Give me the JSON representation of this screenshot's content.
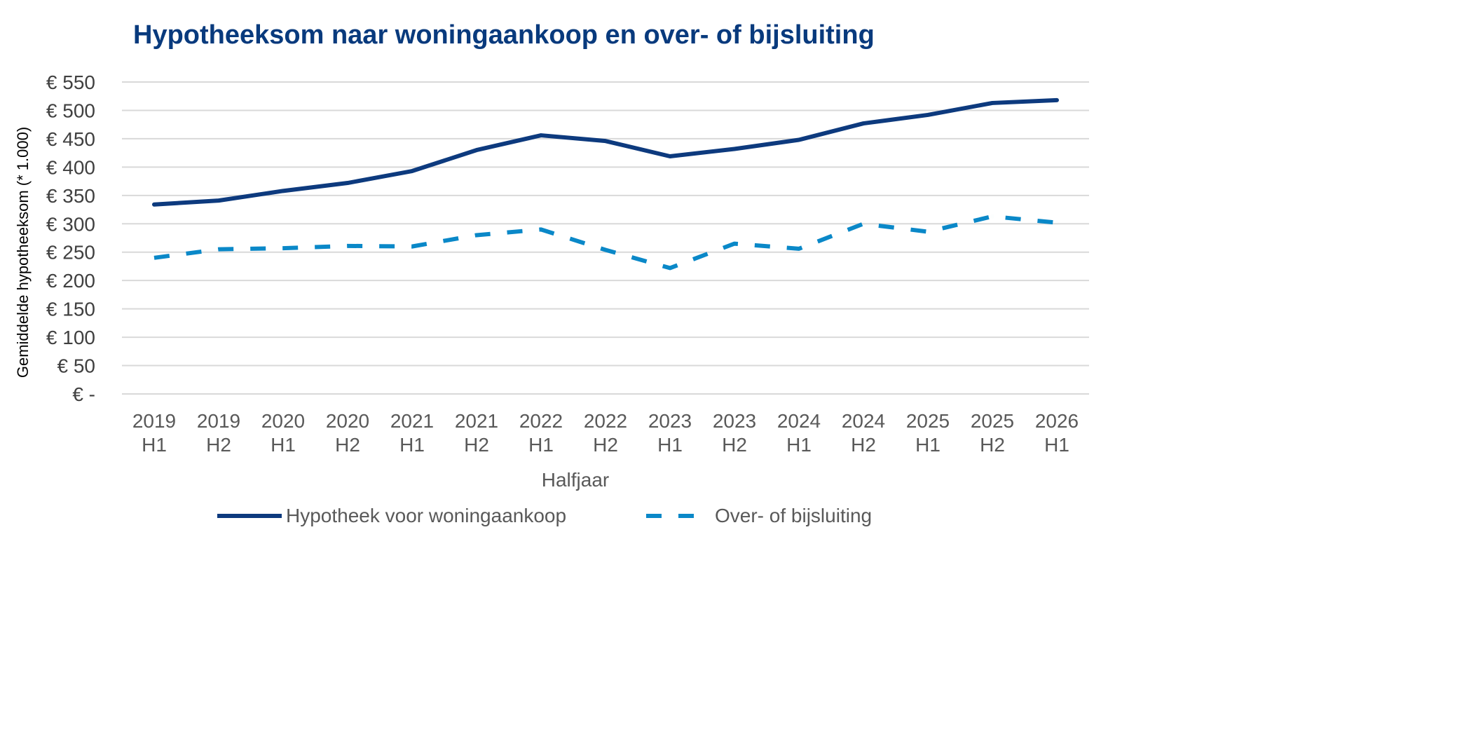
{
  "chart_data": {
    "type": "line",
    "title": "Hypotheeksom naar woningaankoop en over- of bijsluiting",
    "xlabel": "Halfjaar",
    "ylabel": "Gemiddelde hypotheeksom (* 1.000)",
    "categories": [
      [
        "2019",
        "H1"
      ],
      [
        "2019",
        "H2"
      ],
      [
        "2020",
        "H1"
      ],
      [
        "2020",
        "H2"
      ],
      [
        "2021",
        "H1"
      ],
      [
        "2021",
        "H2"
      ],
      [
        "2022",
        "H1"
      ],
      [
        "2022",
        "H2"
      ],
      [
        "2023",
        "H1"
      ],
      [
        "2023",
        "H2"
      ],
      [
        "2024",
        "H1"
      ],
      [
        "2024",
        "H2"
      ],
      [
        "2025",
        "H1"
      ],
      [
        "2025",
        "H2"
      ],
      [
        "2026",
        "H1"
      ]
    ],
    "ylim": [
      0,
      550
    ],
    "yticks": [
      0,
      50,
      100,
      150,
      200,
      250,
      300,
      350,
      400,
      450,
      500,
      550
    ],
    "ytick_labels": [
      "€ -",
      "€ 50",
      "€ 100",
      "€ 150",
      "€ 200",
      "€ 250",
      "€ 300",
      "€ 350",
      "€ 400",
      "€ 450",
      "€ 500",
      "€ 550"
    ],
    "grid": true,
    "legend_position": "bottom",
    "series": [
      {
        "name": "Hypotheek voor woningaankoop",
        "color": "#0d3a7e",
        "style": "solid",
        "values": [
          334,
          341,
          358,
          372,
          393,
          430,
          456,
          446,
          419,
          432,
          448,
          477,
          492,
          513,
          518
        ]
      },
      {
        "name": "Over- of bijsluiting",
        "color": "#0a88c8",
        "style": "dashed",
        "values": [
          240,
          255,
          257,
          261,
          260,
          280,
          290,
          254,
          222,
          265,
          256,
          300,
          286,
          313,
          302
        ]
      }
    ]
  }
}
